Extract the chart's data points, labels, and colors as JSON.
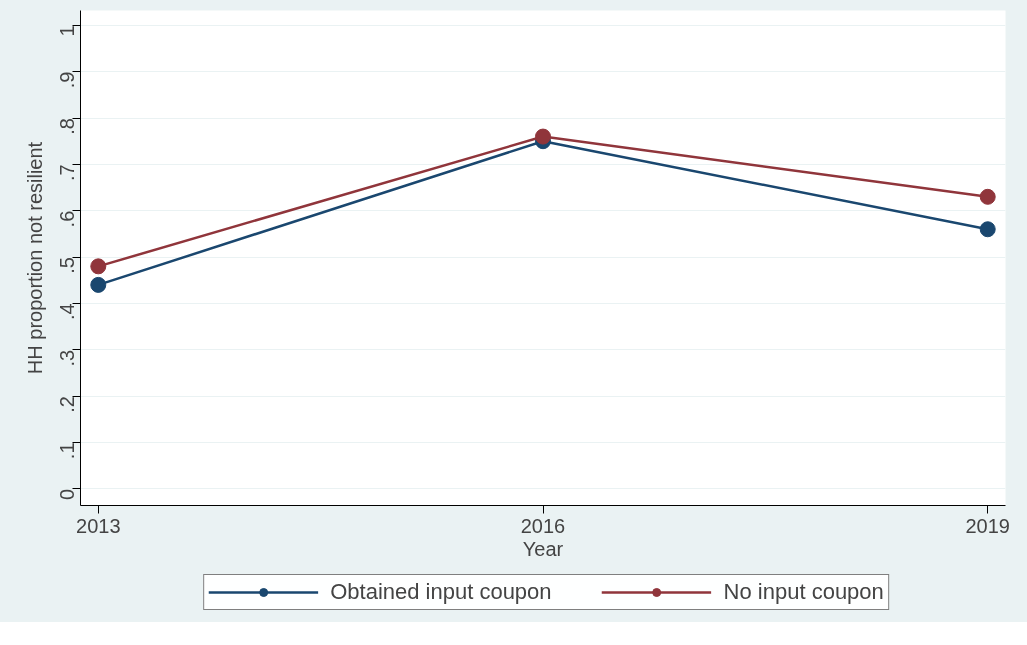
{
  "chart_data": {
    "type": "line",
    "xlabel": "Year",
    "ylabel": "HH proportion not resilient",
    "x": [
      2013,
      2016,
      2019
    ],
    "series": [
      {
        "name": "Obtained input coupon",
        "color": "#1a476f",
        "values": [
          0.44,
          0.75,
          0.56
        ]
      },
      {
        "name": "No input coupon",
        "color": "#90353b",
        "values": [
          0.48,
          0.76,
          0.63
        ]
      }
    ],
    "xlim": [
      2012.88,
      2019.12
    ],
    "xticks": [
      2013,
      2016,
      2019
    ],
    "ylim": [
      -0.036,
      1.032
    ],
    "yticks": [
      0,
      {
        "value": 0.1,
        "label": ".1"
      },
      {
        "value": 0.2,
        "label": ".2"
      },
      {
        "value": 0.3,
        "label": ".3"
      },
      {
        "value": 0.4,
        "label": ".4"
      },
      {
        "value": 0.5,
        "label": ".5"
      },
      {
        "value": 0.6,
        "label": ".6"
      },
      {
        "value": 0.7,
        "label": ".7"
      },
      {
        "value": 0.8,
        "label": ".8"
      },
      {
        "value": 0.9,
        "label": ".9"
      },
      1
    ],
    "grid": "y",
    "legend": "bottom",
    "marker": "circle",
    "line_style": "solid"
  }
}
